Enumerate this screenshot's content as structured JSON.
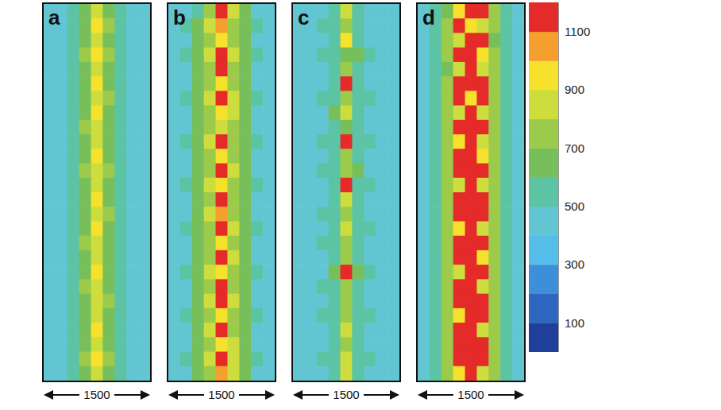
{
  "chart_data": [
    {
      "type": "heatmap",
      "title": "a",
      "scale_bar": 1500,
      "tick_labels": false,
      "cells": [
        [
          410,
          440,
          500,
          600,
          850,
          620,
          520,
          450,
          410
        ],
        [
          400,
          450,
          530,
          650,
          900,
          700,
          540,
          460,
          410
        ],
        [
          410,
          460,
          540,
          620,
          800,
          640,
          530,
          450,
          400
        ],
        [
          400,
          450,
          560,
          700,
          950,
          720,
          560,
          460,
          410
        ],
        [
          410,
          440,
          520,
          610,
          820,
          630,
          520,
          450,
          410
        ],
        [
          400,
          460,
          550,
          680,
          960,
          650,
          540,
          440,
          400
        ],
        [
          410,
          450,
          530,
          620,
          830,
          700,
          550,
          450,
          410
        ],
        [
          400,
          440,
          520,
          600,
          900,
          640,
          520,
          450,
          400
        ],
        [
          410,
          460,
          560,
          720,
          880,
          620,
          530,
          460,
          410
        ],
        [
          400,
          450,
          530,
          630,
          820,
          680,
          540,
          450,
          400
        ],
        [
          410,
          440,
          520,
          610,
          940,
          610,
          520,
          440,
          410
        ],
        [
          400,
          460,
          550,
          700,
          850,
          720,
          560,
          460,
          400
        ],
        [
          410,
          450,
          520,
          600,
          800,
          620,
          520,
          450,
          410
        ],
        [
          400,
          440,
          540,
          660,
          930,
          650,
          540,
          450,
          400
        ],
        [
          410,
          460,
          530,
          610,
          820,
          700,
          530,
          460,
          410
        ],
        [
          400,
          450,
          520,
          620,
          960,
          610,
          520,
          450,
          400
        ],
        [
          410,
          440,
          560,
          710,
          840,
          690,
          550,
          440,
          410
        ],
        [
          400,
          460,
          530,
          600,
          810,
          620,
          530,
          460,
          400
        ],
        [
          410,
          450,
          520,
          640,
          920,
          640,
          520,
          450,
          410
        ],
        [
          400,
          440,
          550,
          700,
          830,
          610,
          540,
          450,
          400
        ],
        [
          410,
          460,
          530,
          610,
          880,
          700,
          530,
          460,
          410
        ],
        [
          400,
          450,
          520,
          620,
          800,
          630,
          520,
          450,
          400
        ],
        [
          410,
          440,
          540,
          680,
          930,
          620,
          550,
          440,
          410
        ],
        [
          400,
          460,
          530,
          600,
          820,
          690,
          530,
          460,
          400
        ],
        [
          410,
          450,
          560,
          700,
          900,
          720,
          540,
          450,
          410
        ],
        [
          400,
          440,
          520,
          620,
          850,
          640,
          520,
          450,
          400
        ]
      ]
    },
    {
      "type": "heatmap",
      "title": "b",
      "scale_bar": 1500,
      "tick_labels": false,
      "cells": [
        [
          410,
          470,
          580,
          760,
          1180,
          820,
          600,
          480,
          410
        ],
        [
          420,
          500,
          620,
          800,
          1050,
          760,
          620,
          500,
          420
        ],
        [
          410,
          480,
          600,
          720,
          900,
          700,
          600,
          480,
          410
        ],
        [
          420,
          500,
          640,
          850,
          1190,
          880,
          640,
          500,
          420
        ],
        [
          410,
          490,
          620,
          780,
          1160,
          760,
          610,
          490,
          410
        ],
        [
          420,
          480,
          600,
          700,
          920,
          720,
          600,
          480,
          420
        ],
        [
          410,
          500,
          650,
          820,
          1170,
          800,
          630,
          500,
          410
        ],
        [
          420,
          490,
          610,
          740,
          960,
          860,
          620,
          490,
          420
        ],
        [
          410,
          480,
          600,
          700,
          880,
          700,
          600,
          480,
          410
        ],
        [
          420,
          500,
          640,
          840,
          1180,
          760,
          640,
          500,
          420
        ],
        [
          410,
          490,
          610,
          760,
          980,
          720,
          610,
          490,
          410
        ],
        [
          420,
          480,
          600,
          720,
          1160,
          850,
          600,
          480,
          420
        ],
        [
          410,
          500,
          640,
          800,
          900,
          720,
          640,
          500,
          410
        ],
        [
          420,
          490,
          610,
          740,
          1170,
          760,
          610,
          490,
          420
        ],
        [
          410,
          480,
          630,
          860,
          1000,
          720,
          620,
          480,
          410
        ],
        [
          420,
          500,
          600,
          720,
          1150,
          840,
          600,
          500,
          420
        ],
        [
          410,
          490,
          640,
          780,
          920,
          700,
          640,
          490,
          410
        ],
        [
          420,
          480,
          610,
          740,
          1180,
          880,
          610,
          480,
          420
        ],
        [
          410,
          500,
          600,
          820,
          960,
          720,
          600,
          500,
          410
        ],
        [
          420,
          490,
          640,
          720,
          1170,
          760,
          640,
          490,
          420
        ],
        [
          410,
          480,
          610,
          860,
          1190,
          800,
          610,
          480,
          410
        ],
        [
          420,
          500,
          600,
          700,
          900,
          720,
          600,
          500,
          420
        ],
        [
          410,
          490,
          640,
          820,
          1160,
          780,
          640,
          490,
          410
        ],
        [
          420,
          480,
          610,
          740,
          980,
          860,
          610,
          480,
          420
        ],
        [
          410,
          500,
          620,
          860,
          1190,
          880,
          630,
          500,
          410
        ],
        [
          420,
          490,
          600,
          740,
          1060,
          820,
          600,
          490,
          420
        ]
      ]
    },
    {
      "type": "heatmap",
      "title": "c",
      "scale_bar": 1500,
      "tick_labels": false,
      "cells": [
        [
          410,
          440,
          480,
          530,
          820,
          560,
          480,
          440,
          410
        ],
        [
          400,
          430,
          500,
          560,
          700,
          540,
          490,
          430,
          400
        ],
        [
          410,
          440,
          480,
          520,
          900,
          560,
          480,
          440,
          410
        ],
        [
          400,
          450,
          510,
          580,
          680,
          600,
          500,
          450,
          400
        ],
        [
          410,
          440,
          490,
          540,
          760,
          540,
          480,
          440,
          410
        ],
        [
          400,
          430,
          480,
          520,
          1150,
          560,
          490,
          430,
          400
        ],
        [
          410,
          450,
          500,
          560,
          720,
          520,
          500,
          450,
          410
        ],
        [
          400,
          440,
          490,
          600,
          800,
          580,
          480,
          440,
          400
        ],
        [
          410,
          430,
          480,
          530,
          680,
          540,
          490,
          430,
          410
        ],
        [
          400,
          450,
          510,
          550,
          1120,
          560,
          500,
          450,
          400
        ],
        [
          410,
          440,
          480,
          520,
          760,
          530,
          480,
          440,
          410
        ],
        [
          400,
          430,
          500,
          580,
          700,
          600,
          490,
          430,
          400
        ],
        [
          410,
          450,
          490,
          540,
          1150,
          560,
          500,
          450,
          410
        ],
        [
          400,
          440,
          480,
          560,
          880,
          540,
          480,
          440,
          400
        ],
        [
          410,
          430,
          510,
          520,
          720,
          560,
          490,
          430,
          410
        ],
        [
          400,
          450,
          480,
          590,
          820,
          580,
          500,
          450,
          400
        ],
        [
          410,
          440,
          500,
          540,
          700,
          540,
          480,
          440,
          410
        ],
        [
          400,
          430,
          480,
          520,
          760,
          520,
          490,
          430,
          400
        ],
        [
          410,
          450,
          490,
          600,
          1130,
          620,
          500,
          450,
          410
        ],
        [
          400,
          440,
          510,
          540,
          780,
          560,
          480,
          440,
          400
        ],
        [
          410,
          430,
          480,
          520,
          700,
          540,
          490,
          430,
          410
        ],
        [
          400,
          450,
          500,
          560,
          740,
          530,
          500,
          450,
          400
        ],
        [
          410,
          440,
          490,
          540,
          880,
          580,
          480,
          440,
          410
        ],
        [
          400,
          430,
          480,
          580,
          720,
          540,
          490,
          430,
          400
        ],
        [
          410,
          450,
          500,
          530,
          800,
          560,
          500,
          450,
          410
        ],
        [
          400,
          440,
          480,
          560,
          860,
          540,
          480,
          440,
          400
        ]
      ]
    },
    {
      "type": "heatmap",
      "title": "d",
      "scale_bar": 1500,
      "tick_labels": false,
      "cells": [
        [
          420,
          520,
          640,
          900,
          1180,
          1150,
          700,
          540,
          420
        ],
        [
          430,
          560,
          720,
          1160,
          980,
          820,
          760,
          560,
          430
        ],
        [
          420,
          540,
          700,
          880,
          1170,
          1160,
          680,
          540,
          420
        ],
        [
          430,
          580,
          760,
          1180,
          1150,
          900,
          720,
          580,
          430
        ],
        [
          420,
          540,
          680,
          860,
          1170,
          820,
          700,
          540,
          420
        ],
        [
          430,
          560,
          740,
          1150,
          1180,
          1160,
          760,
          560,
          430
        ],
        [
          420,
          580,
          720,
          1170,
          900,
          1150,
          740,
          580,
          420
        ],
        [
          430,
          540,
          700,
          860,
          1160,
          880,
          700,
          540,
          430
        ],
        [
          420,
          560,
          760,
          1160,
          1180,
          1170,
          780,
          560,
          420
        ],
        [
          430,
          580,
          720,
          900,
          1150,
          820,
          720,
          580,
          430
        ],
        [
          420,
          540,
          700,
          1170,
          1160,
          900,
          700,
          540,
          420
        ],
        [
          430,
          560,
          780,
          1180,
          1170,
          1160,
          760,
          560,
          430
        ],
        [
          420,
          580,
          720,
          880,
          1150,
          860,
          720,
          580,
          420
        ],
        [
          430,
          540,
          700,
          1150,
          1170,
          1180,
          700,
          540,
          430
        ],
        [
          420,
          560,
          760,
          1170,
          1180,
          1160,
          780,
          560,
          420
        ],
        [
          430,
          580,
          740,
          920,
          1160,
          880,
          720,
          580,
          430
        ],
        [
          420,
          540,
          700,
          1160,
          1170,
          1150,
          700,
          540,
          420
        ],
        [
          430,
          560,
          760,
          1180,
          1160,
          900,
          760,
          560,
          430
        ],
        [
          420,
          580,
          720,
          880,
          1180,
          1170,
          720,
          580,
          420
        ],
        [
          430,
          540,
          700,
          1170,
          1150,
          860,
          700,
          540,
          430
        ],
        [
          420,
          560,
          780,
          1160,
          1180,
          1170,
          780,
          560,
          420
        ],
        [
          430,
          580,
          720,
          900,
          1160,
          1150,
          720,
          580,
          430
        ],
        [
          420,
          540,
          760,
          1170,
          1180,
          880,
          760,
          540,
          420
        ],
        [
          430,
          560,
          700,
          1150,
          1160,
          1170,
          700,
          560,
          430
        ],
        [
          420,
          580,
          740,
          1160,
          1180,
          1150,
          740,
          580,
          420
        ],
        [
          430,
          540,
          720,
          900,
          1170,
          880,
          720,
          540,
          430
        ]
      ]
    }
  ],
  "color_bar": {
    "range": [
      0,
      1200
    ],
    "ticks": [
      100,
      300,
      500,
      700,
      900,
      1100
    ],
    "colors": [
      "#1f3f9a",
      "#2e66bf",
      "#3c8fd8",
      "#55bdea",
      "#62c6d2",
      "#5cc4a4",
      "#76bf5a",
      "#9ccb4c",
      "#cddd3e",
      "#f6e12c",
      "#f5a02e",
      "#e52a2a"
    ]
  }
}
